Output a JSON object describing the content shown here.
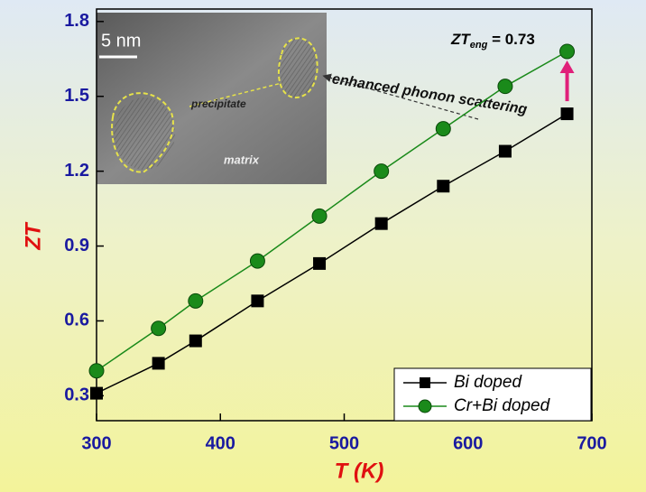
{
  "chart_data": {
    "type": "line",
    "x_label": "T (K)",
    "y_label": "ZT",
    "xlim": [
      300,
      700
    ],
    "xticks": [
      300,
      400,
      500,
      600,
      700
    ],
    "ylim": [
      0.2,
      1.85
    ],
    "yticks": [
      0.3,
      0.6,
      0.9,
      1.2,
      1.5,
      1.8
    ],
    "legend": "bottom-right",
    "series": [
      {
        "name": "Bi doped",
        "color": "#000000",
        "marker": "square",
        "x": [
          300,
          350,
          380,
          430,
          480,
          530,
          580,
          630,
          680
        ],
        "values": [
          0.31,
          0.43,
          0.52,
          0.68,
          0.83,
          0.99,
          1.14,
          1.28,
          1.43
        ]
      },
      {
        "name": "Cr+Bi doped",
        "color": "#1a8a1a",
        "marker": "circle",
        "x": [
          300,
          350,
          380,
          430,
          480,
          530,
          580,
          630,
          680
        ],
        "values": [
          0.4,
          0.57,
          0.68,
          0.84,
          1.02,
          1.2,
          1.37,
          1.54,
          1.68
        ]
      }
    ],
    "annotations": {
      "zt_main": "ZT",
      "zt_sub": "eng",
      "zt_rest": " = 0.73",
      "arrow_text": "enhanced phonon scattering",
      "scale_bar": "5 nm",
      "precipitate": "precipitate",
      "matrix": "matrix"
    }
  }
}
